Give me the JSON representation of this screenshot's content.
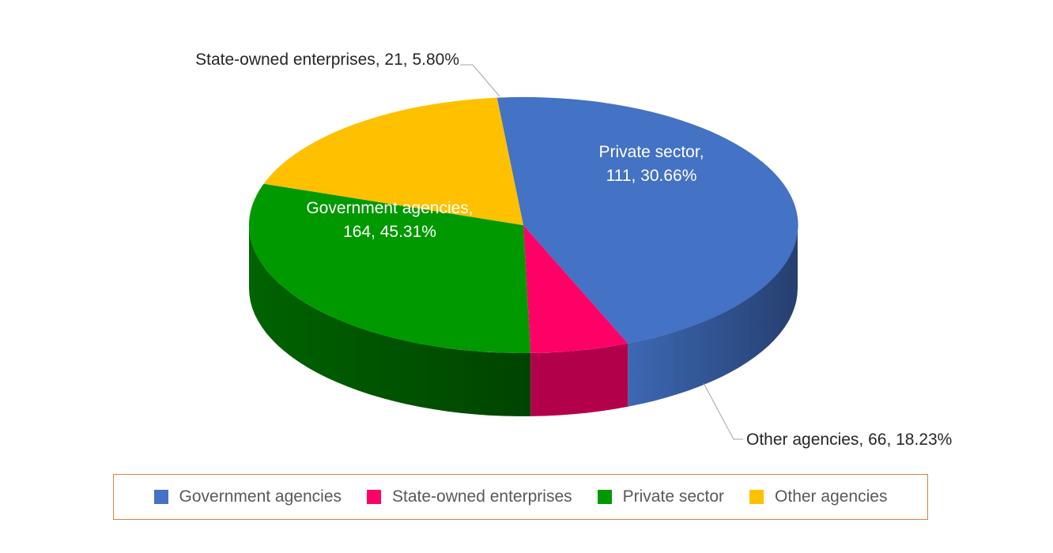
{
  "chart_data": {
    "type": "pie",
    "variant": "3d",
    "categories": [
      "Government agencies",
      "State-owned enterprises",
      "Private sector",
      "Other agencies"
    ],
    "values": [
      164,
      21,
      111,
      66
    ],
    "percentages": [
      "45.31%",
      "5.80%",
      "30.66%",
      "18.23%"
    ],
    "colors": [
      "#4472c4",
      "#ff0066",
      "#009900",
      "#ffc000"
    ],
    "data_labels": [
      {
        "name": "Government agencies,",
        "detail": "164, 45.31%",
        "placement": "inside"
      },
      {
        "name": "State-owned enterprises,",
        "detail": "21, 5.80%",
        "placement": "outside-leader"
      },
      {
        "name": "Private sector,",
        "detail": "111, 30.66%",
        "placement": "inside"
      },
      {
        "name": "Other agencies,",
        "detail": "66, 18.23%",
        "placement": "outside-leader"
      }
    ],
    "legend": {
      "position": "bottom",
      "border_color": "#e07f3f",
      "items": [
        "Government agencies",
        "State-owned enterprises",
        "Private sector",
        "Other agencies"
      ]
    }
  }
}
